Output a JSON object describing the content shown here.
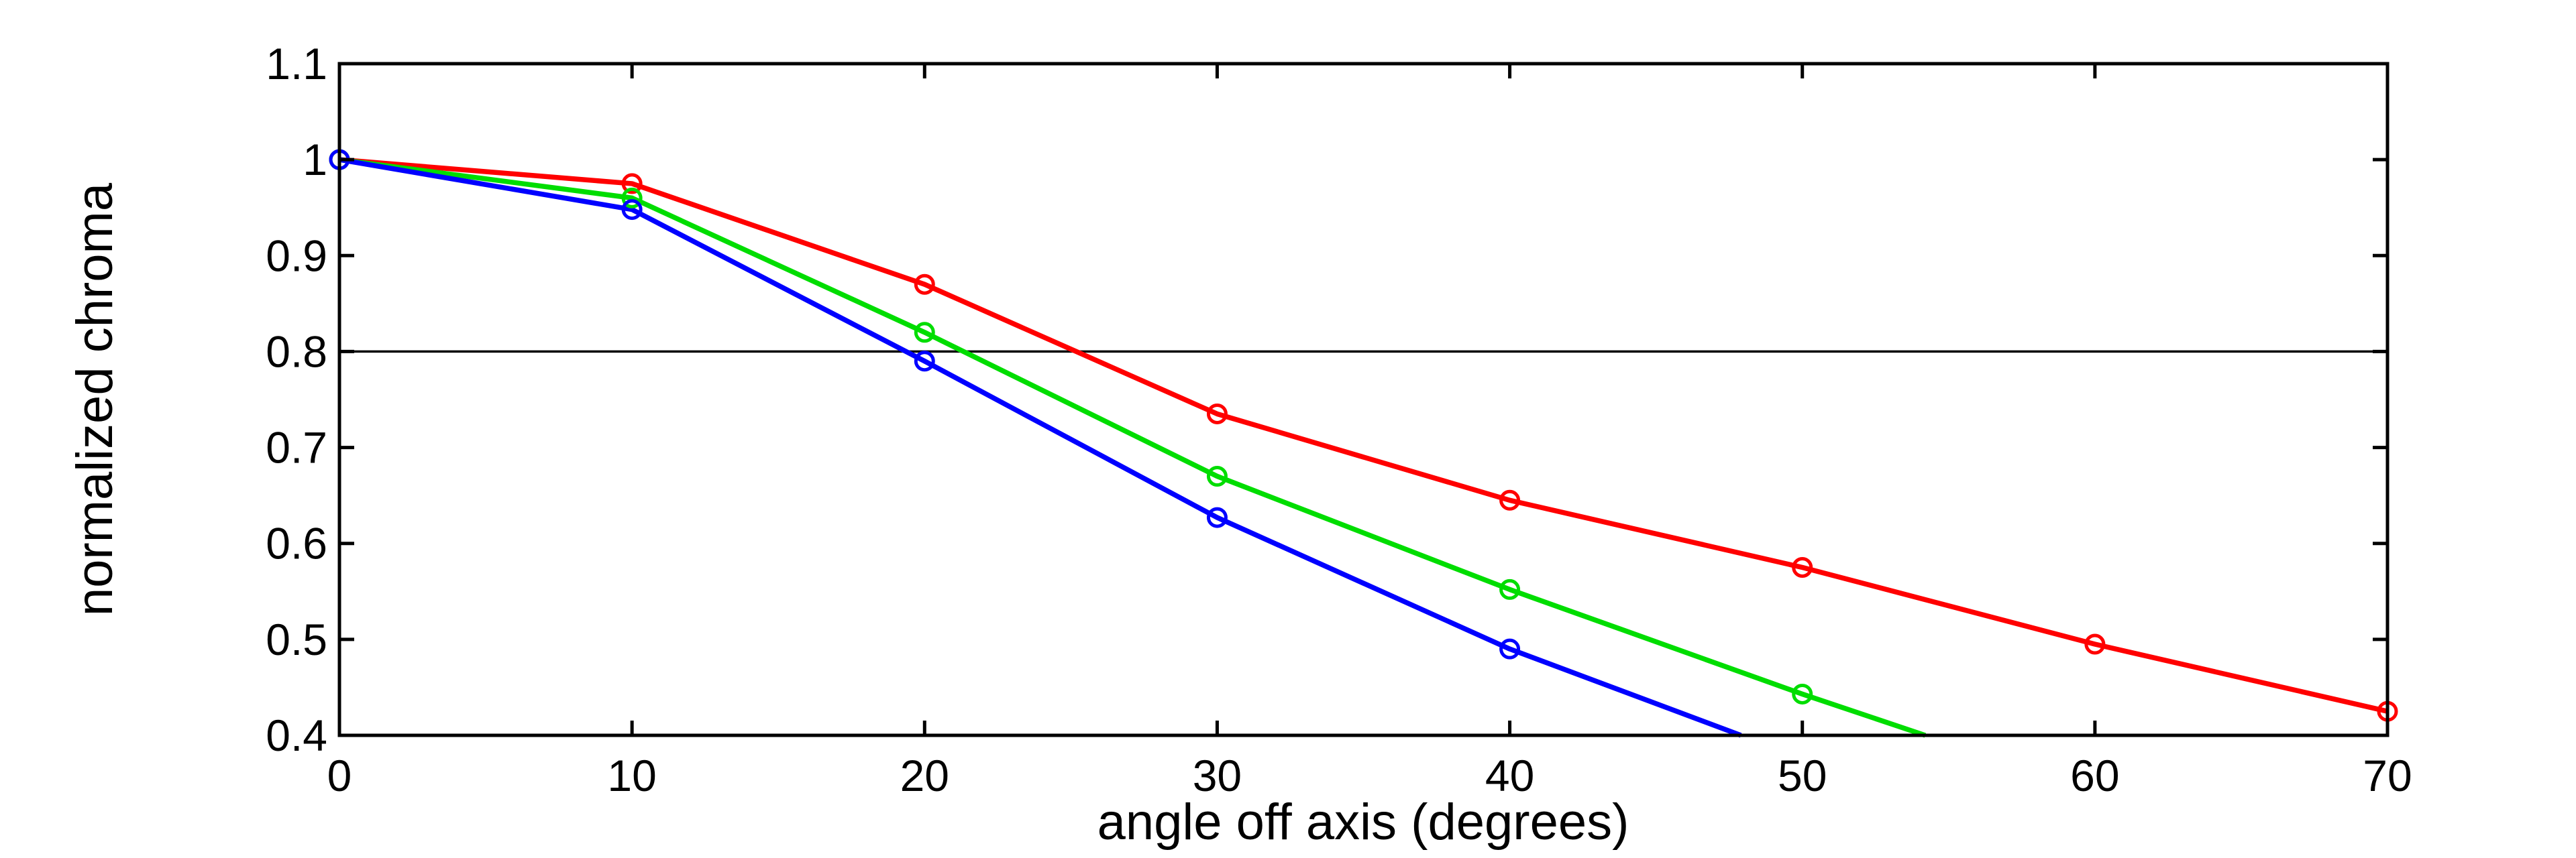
{
  "figure": {
    "background": "#ffffff"
  },
  "chart_data": {
    "type": "line",
    "title": "",
    "xlabel": "angle off axis (degrees)",
    "ylabel": "normalized chroma",
    "xlim": [
      0,
      70
    ],
    "ylim": [
      0.4,
      1.1
    ],
    "grid": false,
    "legend": "none",
    "axis_color": "#000000",
    "xticks": {
      "values": [
        0,
        10,
        20,
        30,
        40,
        50,
        60,
        70
      ],
      "labels": [
        "0",
        "10",
        "20",
        "30",
        "40",
        "50",
        "60",
        "70"
      ]
    },
    "yticks": {
      "values": [
        0.4,
        0.5,
        0.6,
        0.7,
        0.8,
        0.9,
        1.0,
        1.1
      ],
      "labels": [
        "0.4",
        "0.5",
        "0.6",
        "0.7",
        "0.8",
        "0.9",
        "1",
        "1.1"
      ]
    },
    "reference_line": {
      "y": 0.8,
      "color": "#000000"
    },
    "series": [
      {
        "name": "red",
        "color": "#ff0000",
        "marker": "open-circle",
        "x": [
          0,
          10,
          20,
          30,
          40,
          50,
          60,
          70
        ],
        "y": [
          1.0,
          0.975,
          0.87,
          0.735,
          0.645,
          0.575,
          0.495,
          0.425
        ],
        "line_end": null
      },
      {
        "name": "green",
        "color": "#00dd00",
        "marker": "open-circle",
        "x": [
          0,
          10,
          20,
          30,
          40,
          50
        ],
        "y": [
          1.0,
          0.96,
          0.82,
          0.67,
          0.552,
          0.443
        ],
        "line_end": {
          "x": 54.2,
          "y": 0.4
        }
      },
      {
        "name": "blue",
        "color": "#0000ff",
        "marker": "open-circle",
        "x": [
          0,
          10,
          20,
          30,
          40
        ],
        "y": [
          1.0,
          0.948,
          0.79,
          0.627,
          0.49
        ],
        "line_end": {
          "x": 47.9,
          "y": 0.4
        }
      }
    ]
  }
}
